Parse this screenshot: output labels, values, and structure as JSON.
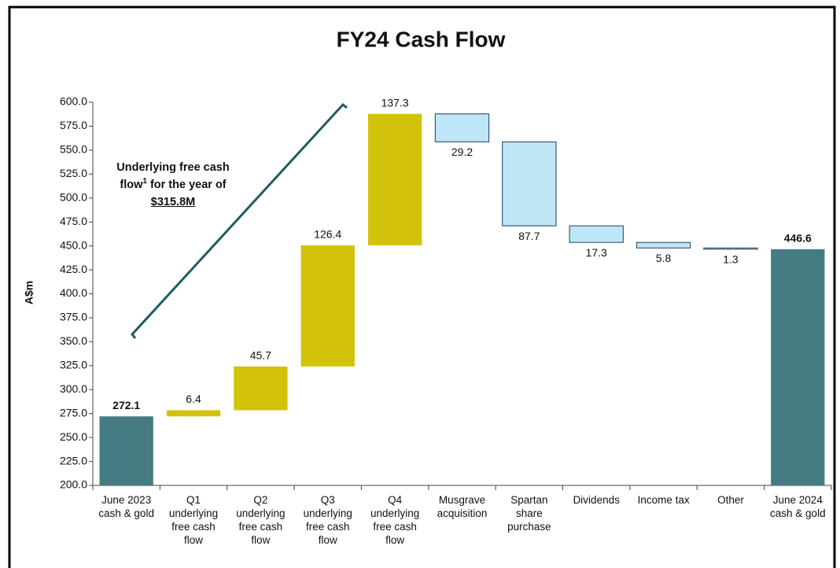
{
  "chart_data": {
    "type": "waterfall",
    "title": "FY24 Cash Flow",
    "y_label": "A$m",
    "categories": [
      "June 2023 cash & gold",
      "Q1 underlying free cash flow",
      "Q2 underlying free cash flow",
      "Q3 underlying free cash flow",
      "Q4 underlying free cash flow",
      "Musgrave acquisition",
      "Spartan share purchase",
      "Dividends",
      "Income tax",
      "Other",
      "June 2024 cash & gold"
    ],
    "values": [
      272.1,
      6.4,
      45.7,
      126.4,
      137.3,
      -29.2,
      -87.7,
      -17.3,
      -5.8,
      -1.3,
      446.6
    ],
    "value_labels": [
      "272.1",
      "6.4",
      "45.7",
      "126.4",
      "137.3",
      "29.2",
      "87.7",
      "17.3",
      "5.8",
      "1.3",
      "446.6"
    ],
    "measure": [
      "absolute",
      "relative",
      "relative",
      "relative",
      "relative",
      "relative",
      "relative",
      "relative",
      "relative",
      "relative",
      "absolute"
    ],
    "colors": {
      "total": "#457b82",
      "increase": "#d3c20a",
      "decrease": "#bfe6f7"
    },
    "ylim": [
      200,
      600
    ],
    "yticks": [
      {
        "value": 200,
        "label": "200.0"
      },
      {
        "value": 225,
        "label": "225.0"
      },
      {
        "value": 250,
        "label": "250.0"
      },
      {
        "value": 275,
        "label": "275.0"
      },
      {
        "value": 300,
        "label": "300.0"
      },
      {
        "value": 325,
        "label": "325.0"
      },
      {
        "value": 350,
        "label": "350.0"
      },
      {
        "value": 375,
        "label": "375.0"
      },
      {
        "value": 400,
        "label": "400.0"
      },
      {
        "value": 425,
        "label": "425.0"
      },
      {
        "value": 450,
        "label": "450.0"
      },
      {
        "value": 475,
        "label": "475.0"
      },
      {
        "value": 500,
        "label": "500.0"
      },
      {
        "value": 525,
        "label": "525.0"
      },
      {
        "value": 550,
        "label": "550.0"
      },
      {
        "value": 575,
        "label": "575.0"
      },
      {
        "value": 600,
        "label": "600.0"
      }
    ],
    "annotation": {
      "text": "Underlying free cash flow",
      "sup": "1",
      "text_after": " for the year of",
      "amount": "$315.8M"
    }
  }
}
